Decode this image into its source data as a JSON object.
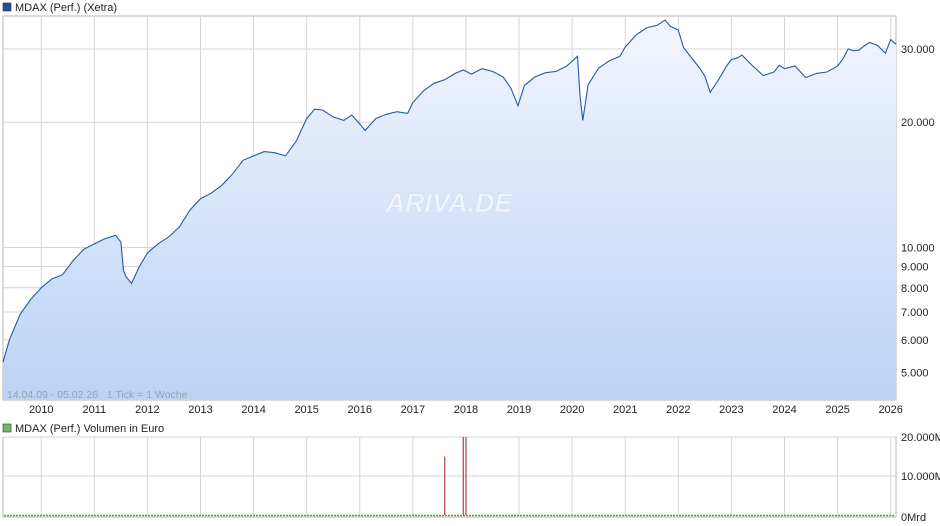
{
  "chart_data": [
    {
      "type": "area",
      "title": "MDAX (Perf.) (Xetra)",
      "legend_color": "#1f4e9e",
      "line_color": "#2359b0",
      "fill_top_color": "#f2f6fd",
      "fill_bottom_color": "#bcd2f6",
      "watermark": "ARIVA.DE",
      "range_note": "14.04.09 - 05.02.26   1 Tick = 1 Woche",
      "y_scale": "log",
      "ylim": [
        4300,
        36000
      ],
      "yticks": [
        {
          "value": 30000,
          "label": "30.000"
        },
        {
          "value": 20000,
          "label": "20.000"
        },
        {
          "value": 10000,
          "label": "10.000"
        },
        {
          "value": 9000,
          "label": "9.000"
        },
        {
          "value": 8000,
          "label": "8.000"
        },
        {
          "value": 7000,
          "label": "7.000"
        },
        {
          "value": 6000,
          "label": "6.000"
        },
        {
          "value": 5000,
          "label": "5.000"
        }
      ],
      "xlim": [
        2009.28,
        2026.1
      ],
      "xticks": [
        "2010",
        "2011",
        "2012",
        "2013",
        "2014",
        "2015",
        "2016",
        "2017",
        "2018",
        "2019",
        "2020",
        "2021",
        "2022",
        "2023",
        "2024",
        "2025",
        "2026"
      ],
      "grid": true,
      "x": [
        2009.28,
        2009.4,
        2009.6,
        2009.8,
        2010.0,
        2010.2,
        2010.4,
        2010.6,
        2010.8,
        2011.0,
        2011.2,
        2011.4,
        2011.5,
        2011.55,
        2011.6,
        2011.7,
        2011.85,
        2012.0,
        2012.2,
        2012.4,
        2012.6,
        2012.8,
        2013.0,
        2013.2,
        2013.4,
        2013.6,
        2013.8,
        2014.0,
        2014.2,
        2014.4,
        2014.6,
        2014.8,
        2015.0,
        2015.15,
        2015.3,
        2015.5,
        2015.7,
        2015.85,
        2016.0,
        2016.1,
        2016.3,
        2016.5,
        2016.7,
        2016.9,
        2017.0,
        2017.2,
        2017.4,
        2017.6,
        2017.8,
        2017.95,
        2018.1,
        2018.3,
        2018.5,
        2018.7,
        2018.85,
        2018.98,
        2019.1,
        2019.3,
        2019.5,
        2019.7,
        2019.9,
        2020.1,
        2020.15,
        2020.2,
        2020.3,
        2020.5,
        2020.7,
        2020.9,
        2021.0,
        2021.2,
        2021.4,
        2021.6,
        2021.75,
        2021.85,
        2022.0,
        2022.1,
        2022.2,
        2022.4,
        2022.5,
        2022.6,
        2022.75,
        2022.9,
        2023.0,
        2023.1,
        2023.2,
        2023.4,
        2023.6,
        2023.8,
        2023.9,
        2024.0,
        2024.2,
        2024.4,
        2024.6,
        2024.8,
        2025.0,
        2025.1,
        2025.2,
        2025.3,
        2025.4,
        2025.5,
        2025.6,
        2025.75,
        2025.9,
        2026.0,
        2026.1
      ],
      "series": [
        {
          "values": [
            5300,
            6000,
            6900,
            7500,
            8000,
            8400,
            8600,
            9300,
            9900,
            10200,
            10500,
            10700,
            10300,
            8800,
            8500,
            8200,
            9000,
            9700,
            10200,
            10600,
            11200,
            12300,
            13100,
            13500,
            14100,
            15000,
            16200,
            16600,
            17000,
            16900,
            16600,
            18000,
            20400,
            21500,
            21400,
            20600,
            20200,
            20800,
            19800,
            19100,
            20400,
            20900,
            21200,
            21000,
            22300,
            23800,
            24800,
            25300,
            26200,
            26700,
            26100,
            26900,
            26500,
            25700,
            24100,
            21900,
            24500,
            25700,
            26300,
            26500,
            27300,
            28800,
            23000,
            20200,
            24600,
            27000,
            28100,
            28800,
            30300,
            32400,
            33700,
            34200,
            35200,
            34000,
            33300,
            30200,
            29100,
            27000,
            25800,
            23600,
            25200,
            27200,
            28300,
            28500,
            29000,
            27300,
            25900,
            26400,
            27400,
            26900,
            27300,
            25600,
            26200,
            26400,
            27300,
            28400,
            30000,
            29700,
            29800,
            30500,
            31100,
            30600,
            29300,
            31600,
            30800
          ]
        }
      ]
    },
    {
      "type": "bar",
      "title": "MDAX (Perf.) Volumen in Euro",
      "legend_color": "#6dbd5e",
      "bar_color": "#b84040",
      "baseline_color": "#56a84a",
      "ylim": [
        0,
        20000
      ],
      "yticks": [
        {
          "value": 20000,
          "label": "20.000M"
        },
        {
          "value": 10000,
          "label": "10.000M"
        },
        {
          "value": 0,
          "label": "0Mrd"
        }
      ],
      "x": [
        2017.6,
        2017.95,
        2018.0
      ],
      "values": [
        15000,
        20000,
        20000
      ]
    }
  ]
}
